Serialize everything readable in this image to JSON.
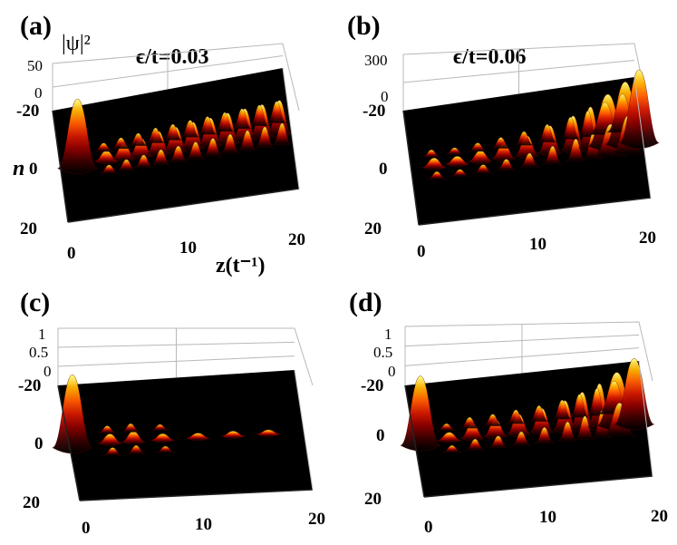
{
  "figure": {
    "xlabel": "z(t⁻¹)",
    "ylabel": "n",
    "zlabel": "|ψ|²",
    "colormap": [
      "#000000",
      "#3a0000",
      "#8a0000",
      "#d01800",
      "#ff5a00",
      "#ffb000",
      "#ffff80"
    ]
  },
  "chart_data": [
    {
      "type": "surface",
      "panel": "(a)",
      "param_label": "ϵ/t=0.03",
      "xlabel": "z(t⁻¹)",
      "ylabel": "n",
      "zlabel": "|ψ|²",
      "x_ticks": [
        "0",
        "10",
        "20"
      ],
      "y_ticks": [
        "-20",
        "0",
        "20"
      ],
      "z_ticks": [
        "50",
        "0"
      ],
      "xlim": [
        0,
        20
      ],
      "ylim": [
        -20,
        20
      ],
      "zlim": [
        0,
        50
      ],
      "peaks": [
        {
          "z": 1.5,
          "amp": 0.95
        },
        {
          "z": 4,
          "amp": 0.12
        },
        {
          "z": 5.5,
          "amp": 0.18
        },
        {
          "z": 7,
          "amp": 0.22
        },
        {
          "z": 8.5,
          "amp": 0.28
        },
        {
          "z": 10,
          "amp": 0.3
        },
        {
          "z": 11.5,
          "amp": 0.33
        },
        {
          "z": 13,
          "amp": 0.35
        },
        {
          "z": 14.5,
          "amp": 0.38
        },
        {
          "z": 16,
          "amp": 0.4
        },
        {
          "z": 17.5,
          "amp": 0.42
        },
        {
          "z": 19,
          "amp": 0.44
        }
      ]
    },
    {
      "type": "surface",
      "panel": "(b)",
      "param_label": "ϵ/t=0.06",
      "xlabel": "",
      "ylabel": "",
      "zlabel": "",
      "x_ticks": [
        "0",
        "10",
        "20"
      ],
      "y_ticks": [
        "-20",
        "0",
        "20"
      ],
      "z_ticks": [
        "300",
        "0"
      ],
      "xlim": [
        0,
        20
      ],
      "ylim": [
        -20,
        20
      ],
      "zlim": [
        0,
        300
      ],
      "peaks": [
        {
          "z": 2,
          "amp": 0.1
        },
        {
          "z": 4,
          "amp": 0.08
        },
        {
          "z": 6,
          "amp": 0.12
        },
        {
          "z": 8,
          "amp": 0.18
        },
        {
          "z": 10,
          "amp": 0.25
        },
        {
          "z": 12,
          "amp": 0.35
        },
        {
          "z": 14,
          "amp": 0.45
        },
        {
          "z": 15.5,
          "amp": 0.55
        },
        {
          "z": 17,
          "amp": 0.7
        },
        {
          "z": 18.5,
          "amp": 0.85
        },
        {
          "z": 19.7,
          "amp": 1.0
        }
      ]
    },
    {
      "type": "surface",
      "panel": "(c)",
      "param_label": "",
      "xlabel": "",
      "ylabel": "",
      "zlabel": "",
      "x_ticks": [
        "0",
        "10",
        "20"
      ],
      "y_ticks": [
        "-20",
        "0",
        "20"
      ],
      "z_ticks": [
        "1",
        "0.5",
        "0"
      ],
      "xlim": [
        0,
        20
      ],
      "ylim": [
        -20,
        20
      ],
      "zlim": [
        0,
        1
      ],
      "peaks": [
        {
          "z": 0.3,
          "amp": 1.0
        },
        {
          "z": 3.5,
          "amp": 0.1
        },
        {
          "z": 5.5,
          "amp": 0.12
        },
        {
          "z": 8,
          "amp": 0.06
        },
        {
          "z": 11,
          "amp": 0.04
        },
        {
          "z": 14,
          "amp": 0.04
        },
        {
          "z": 17,
          "amp": 0.03
        }
      ]
    },
    {
      "type": "surface",
      "panel": "(d)",
      "param_label": "",
      "xlabel": "",
      "ylabel": "",
      "zlabel": "",
      "x_ticks": [
        "0",
        "10",
        "20"
      ],
      "y_ticks": [
        "-20",
        "0",
        "20"
      ],
      "z_ticks": [
        "1",
        "0.5",
        "0"
      ],
      "xlim": [
        0,
        20
      ],
      "ylim": [
        -20,
        20
      ],
      "zlim": [
        0,
        1
      ],
      "peaks": [
        {
          "z": 0.5,
          "amp": 0.95
        },
        {
          "z": 3,
          "amp": 0.08
        },
        {
          "z": 5,
          "amp": 0.18
        },
        {
          "z": 7,
          "amp": 0.2
        },
        {
          "z": 9,
          "amp": 0.25
        },
        {
          "z": 11,
          "amp": 0.3
        },
        {
          "z": 13,
          "amp": 0.38
        },
        {
          "z": 14.5,
          "amp": 0.48
        },
        {
          "z": 16,
          "amp": 0.58
        },
        {
          "z": 17.5,
          "amp": 0.72
        },
        {
          "z": 19,
          "amp": 0.9
        }
      ]
    }
  ]
}
